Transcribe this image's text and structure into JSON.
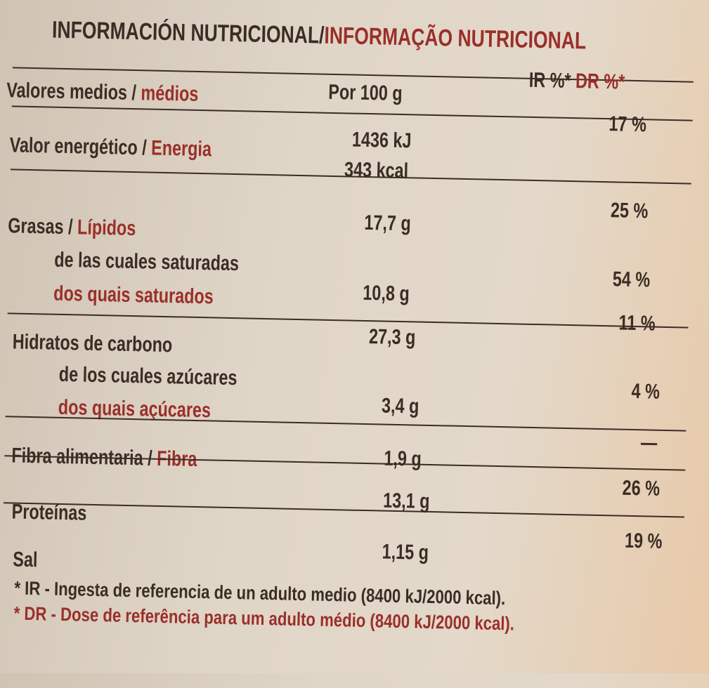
{
  "title": {
    "es": "INFORMACIÓN NUTRICIONAL",
    "sep": "/",
    "pt": "INFORMAÇÃO NUTRICIONAL"
  },
  "header": {
    "label_es": "Valores medios /",
    "label_pt": "médios",
    "per": "Por 100 g",
    "ir": "IR %*",
    "dr": "DR %*"
  },
  "rows": [
    {
      "es": "Valor energético /",
      "pt": "Energia",
      "value": "1436 kJ",
      "value2": "343 kcal",
      "pct": "17 %"
    },
    {
      "es": "Grasas /",
      "pt": "Lípidos",
      "value": "17,7 g",
      "pct": "25 %"
    },
    {
      "es": "de las cuales saturadas",
      "pt": "dos quais saturados",
      "value": "10,8 g",
      "pct": "54 %"
    },
    {
      "es": "Hidratos de carbono",
      "value": "27,3 g",
      "pct": "11 %"
    },
    {
      "es": "de los cuales azúcares",
      "pt": "dos quais açúcares",
      "value": "3,4 g",
      "pct": "4 %"
    },
    {
      "es": "Fibra alimentaria /",
      "pt": "Fibra",
      "value": "1,9 g",
      "pct": "—"
    },
    {
      "es": "Proteínas",
      "value": "13,1 g",
      "pct": "26 %"
    },
    {
      "es": "Sal",
      "value": "1,15 g",
      "pct": "19 %"
    }
  ],
  "footnotes": {
    "ir": "* IR - Ingesta de referencia de un adulto medio (8400 kJ/2000 kcal).",
    "dr": "* DR - Dose de referência  para um adulto médio (8400 kJ/2000 kcal)."
  },
  "colors": {
    "text": "#3b2c25",
    "accent": "#9a2f2a"
  }
}
